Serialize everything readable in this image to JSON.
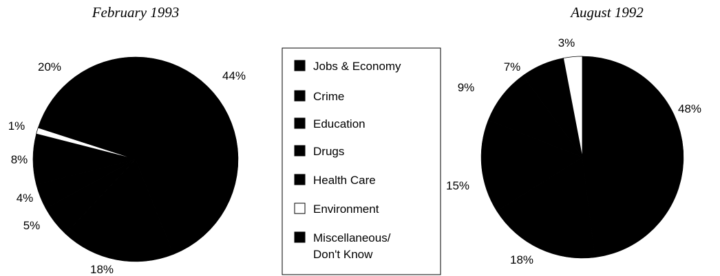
{
  "chart_data": {
    "type": "pie",
    "legend": {
      "placement": "center",
      "entries": [
        {
          "label": "Jobs & Economy",
          "color": "#000000"
        },
        {
          "label": "Crime",
          "color": "#000000"
        },
        {
          "label": "Education",
          "color": "#000000"
        },
        {
          "label": "Drugs",
          "color": "#000000"
        },
        {
          "label": "Health Care",
          "color": "#000000"
        },
        {
          "label": "Environment",
          "color": "#ffffff"
        },
        {
          "label": "Miscellaneous/\nDon't Know",
          "color": "#000000"
        }
      ]
    },
    "pies": [
      {
        "title": "February 1993",
        "slices": [
          {
            "category": "Jobs & Economy",
            "value": 44,
            "label": "44%"
          },
          {
            "category": "Crime",
            "value": 18,
            "label": "18%"
          },
          {
            "category": "Education",
            "value": 5,
            "label": "5%"
          },
          {
            "category": "Drugs",
            "value": 4,
            "label": "4%"
          },
          {
            "category": "Health Care",
            "value": 8,
            "label": "8%"
          },
          {
            "category": "Environment",
            "value": 1,
            "label": "1%"
          },
          {
            "category": "Miscellaneous/\nDon't Know",
            "value": 20,
            "label": "20%"
          }
        ]
      },
      {
        "title": "August 1992",
        "slices": [
          {
            "category": "Jobs & Economy",
            "value": 48,
            "label": "48%"
          },
          {
            "category": "Crime",
            "value": 18,
            "label": "18%"
          },
          {
            "category": "Education",
            "value": 15,
            "label": "15%"
          },
          {
            "category": "Drugs",
            "value": 9,
            "label": "9%"
          },
          {
            "category": "Health Care",
            "value": 7,
            "label": "7%"
          },
          {
            "category": "Environment",
            "value": 3,
            "label": "3%"
          }
        ]
      }
    ]
  }
}
